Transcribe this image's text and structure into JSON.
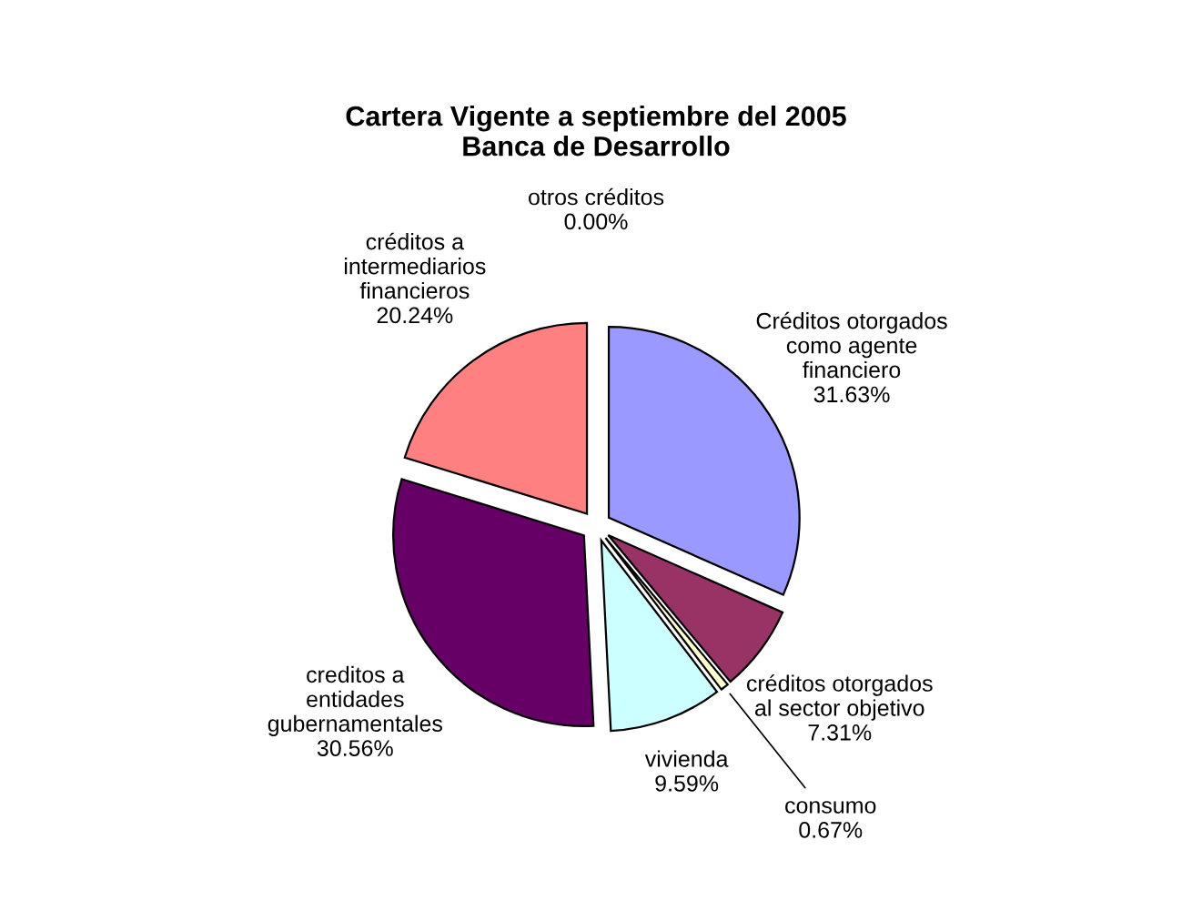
{
  "chart_data": {
    "type": "pie",
    "title": "Cartera Vigente a septiembre del 2005\nBanca de Desarrollo",
    "categories": [
      "Créditos otorgados\ncomo agente\nfinanciero",
      "créditos otorgados\nal sector objetivo",
      "consumo",
      "vivienda",
      "creditos a\nentidades\ngubernamentales",
      "créditos a\nintermediarios\nfinancieros",
      "otros créditos"
    ],
    "values": [
      31.63,
      7.31,
      0.67,
      9.59,
      30.56,
      20.24,
      0.0
    ],
    "value_labels": [
      "31.63%",
      "7.31%",
      "0.67%",
      "9.59%",
      "30.56%",
      "20.24%",
      "0.00%"
    ],
    "colors": [
      "#9999ff",
      "#993366",
      "#ffffcc",
      "#ccffff",
      "#660066",
      "#ff8080",
      "#0066cc"
    ],
    "legend": false
  }
}
